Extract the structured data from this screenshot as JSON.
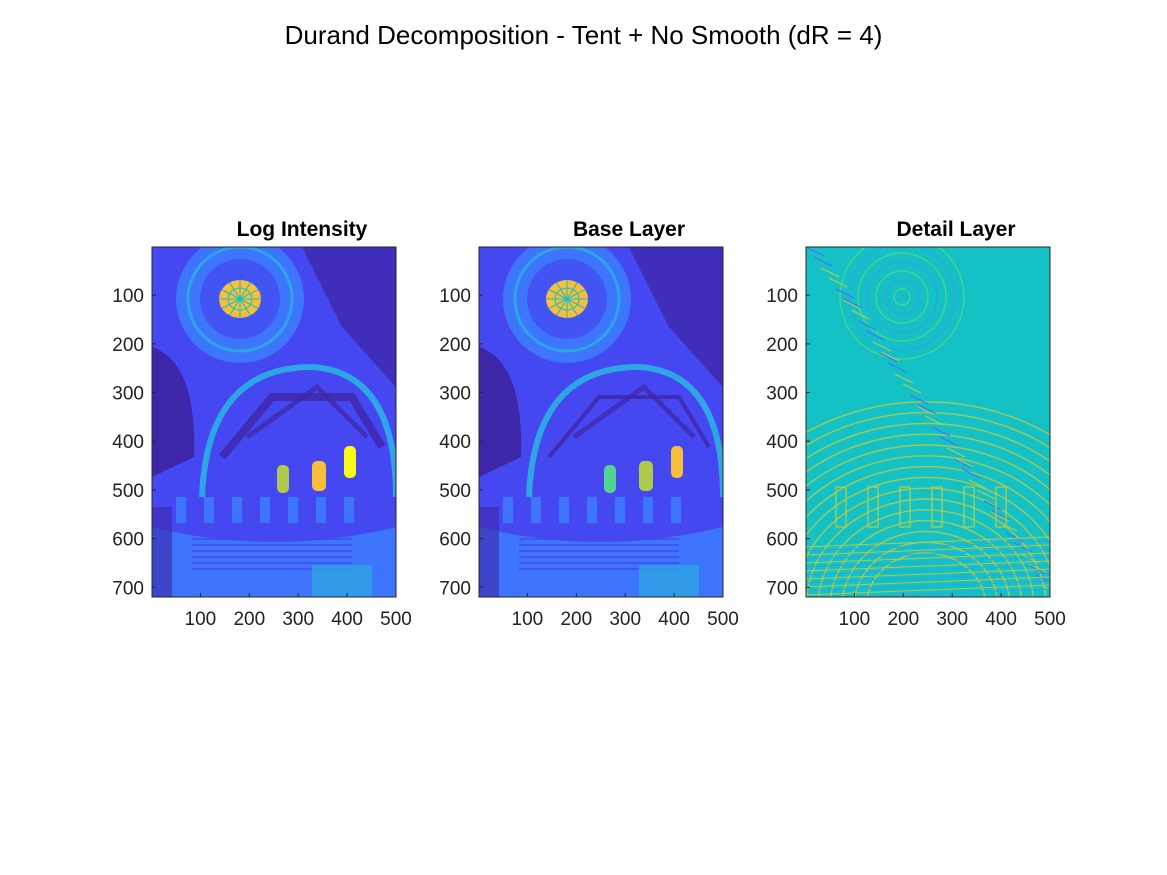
{
  "figure_title": "Durand Decomposition - Tent + No Smooth (dR = 4)",
  "colormap": [
    "#3e26a8",
    "#4547f0",
    "#3e75fd",
    "#2ea5e5",
    "#14c2c5",
    "#52d38f",
    "#b0cb4c",
    "#f7be3b",
    "#f9fb14"
  ],
  "chart_data": [
    {
      "type": "heatmap",
      "title": "Log Intensity",
      "xlim": [
        1,
        500
      ],
      "ylim": [
        1,
        720
      ],
      "x_ticks": [
        100,
        200,
        300,
        400,
        500
      ],
      "y_ticks": [
        100,
        200,
        300,
        400,
        500,
        600,
        700
      ],
      "grid": false,
      "y_reversed": true
    },
    {
      "type": "heatmap",
      "title": "Base Layer",
      "xlim": [
        1,
        500
      ],
      "ylim": [
        1,
        720
      ],
      "x_ticks": [
        100,
        200,
        300,
        400,
        500
      ],
      "y_ticks": [
        100,
        200,
        300,
        400,
        500,
        600,
        700
      ],
      "grid": false,
      "y_reversed": true
    },
    {
      "type": "heatmap",
      "title": "Detail Layer",
      "xlim": [
        1,
        500
      ],
      "ylim": [
        1,
        720
      ],
      "x_ticks": [
        100,
        200,
        300,
        400,
        500
      ],
      "y_ticks": [
        100,
        200,
        300,
        400,
        500,
        600,
        700
      ],
      "grid": false,
      "y_reversed": true
    }
  ]
}
